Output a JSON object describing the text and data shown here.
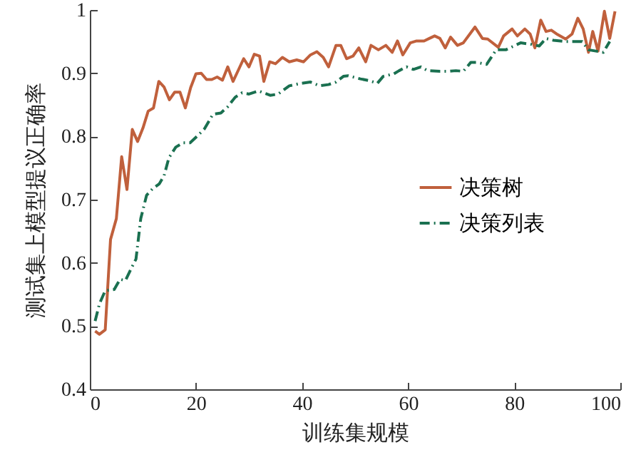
{
  "chart_data": {
    "type": "line",
    "xlabel": "训练集规模",
    "ylabel": "测试集上模型提议正确率",
    "xlim": [
      0,
      100
    ],
    "xticks": [
      0,
      20,
      40,
      60,
      80,
      100
    ],
    "ylim": [
      0.4,
      1
    ],
    "yticks": [
      0.4,
      0.5,
      0.6,
      0.7,
      0.8,
      0.9,
      1
    ],
    "grid": false,
    "legend": "right",
    "marker": "none",
    "series": [
      {
        "name": "决策树",
        "color": "#c0603c",
        "line_style": "solid",
        "x": [
          1,
          1.8,
          2.9,
          3.9,
          5,
          6,
          7,
          8,
          9,
          10,
          11,
          12,
          13,
          14,
          15,
          16,
          17,
          18,
          19,
          20,
          21,
          22,
          23,
          24,
          25,
          26,
          27,
          28,
          29,
          30,
          31,
          32,
          32.8,
          33.9,
          35,
          36.3,
          37.6,
          39,
          40.3,
          41.6,
          42.8,
          44,
          45,
          46.4,
          47.3,
          48.4,
          49.6,
          50.7,
          52,
          53,
          54.4,
          55.8,
          57,
          58,
          59,
          60.4,
          61.6,
          63,
          64,
          65,
          66,
          67,
          68,
          69.3,
          70.4,
          72.6,
          74,
          75,
          77,
          78,
          79.6,
          80.6,
          82,
          83,
          83.9,
          85,
          86,
          87,
          88.2,
          89.7,
          90.9,
          92,
          93,
          94,
          94.8,
          95.8,
          97,
          98,
          99
        ],
        "values": [
          0.492,
          0.487,
          0.494,
          0.637,
          0.67,
          0.768,
          0.716,
          0.811,
          0.792,
          0.813,
          0.84,
          0.845,
          0.887,
          0.878,
          0.858,
          0.87,
          0.87,
          0.845,
          0.877,
          0.899,
          0.9,
          0.89,
          0.89,
          0.894,
          0.889,
          0.91,
          0.887,
          0.905,
          0.923,
          0.91,
          0.93,
          0.927,
          0.887,
          0.918,
          0.915,
          0.925,
          0.918,
          0.921,
          0.918,
          0.929,
          0.934,
          0.925,
          0.91,
          0.944,
          0.944,
          0.923,
          0.927,
          0.94,
          0.918,
          0.944,
          0.937,
          0.944,
          0.933,
          0.951,
          0.929,
          0.948,
          0.951,
          0.951,
          0.955,
          0.959,
          0.955,
          0.94,
          0.957,
          0.944,
          0.948,
          0.973,
          0.955,
          0.954,
          0.941,
          0.959,
          0.97,
          0.959,
          0.97,
          0.962,
          0.94,
          0.984,
          0.966,
          0.968,
          0.961,
          0.954,
          0.962,
          0.987,
          0.97,
          0.933,
          0.966,
          0.935,
          0.998,
          0.955,
          0.998
        ]
      },
      {
        "name": "决策列表",
        "color": "#1a7050",
        "line_style": "dashed",
        "x": [
          1,
          1.8,
          2.9,
          4.6,
          5.7,
          6.7,
          7.8,
          8.7,
          9.6,
          10.7,
          11.8,
          13.1,
          14,
          14.9,
          16.2,
          17.6,
          18.9,
          20.3,
          21.6,
          23.2,
          24.7,
          26,
          27.4,
          28.7,
          30,
          31.8,
          34,
          35.5,
          37.6,
          39.8,
          41.6,
          43.3,
          45,
          46.4,
          47.8,
          48.7,
          51,
          52.8,
          54.2,
          55.3,
          57.3,
          58.3,
          59.7,
          61,
          62.4,
          63.7,
          66,
          67.7,
          69,
          70.4,
          71.8,
          73,
          74.8,
          76.6,
          78.4,
          81.2,
          83,
          84.7,
          86,
          87.4,
          89.7,
          91.5,
          92.8,
          94,
          96.8,
          98
        ],
        "values": [
          0.508,
          0.535,
          0.556,
          0.558,
          0.574,
          0.572,
          0.591,
          0.606,
          0.67,
          0.707,
          0.717,
          0.725,
          0.738,
          0.766,
          0.783,
          0.79,
          0.79,
          0.801,
          0.812,
          0.835,
          0.837,
          0.847,
          0.862,
          0.869,
          0.867,
          0.872,
          0.865,
          0.867,
          0.88,
          0.884,
          0.886,
          0.88,
          0.882,
          0.886,
          0.895,
          0.896,
          0.891,
          0.888,
          0.884,
          0.895,
          0.899,
          0.904,
          0.91,
          0.906,
          0.91,
          0.904,
          0.903,
          0.903,
          0.904,
          0.903,
          0.917,
          0.917,
          0.914,
          0.937,
          0.937,
          0.948,
          0.946,
          0.943,
          0.955,
          0.952,
          0.95,
          0.95,
          0.95,
          0.937,
          0.933,
          0.95
        ]
      }
    ]
  }
}
